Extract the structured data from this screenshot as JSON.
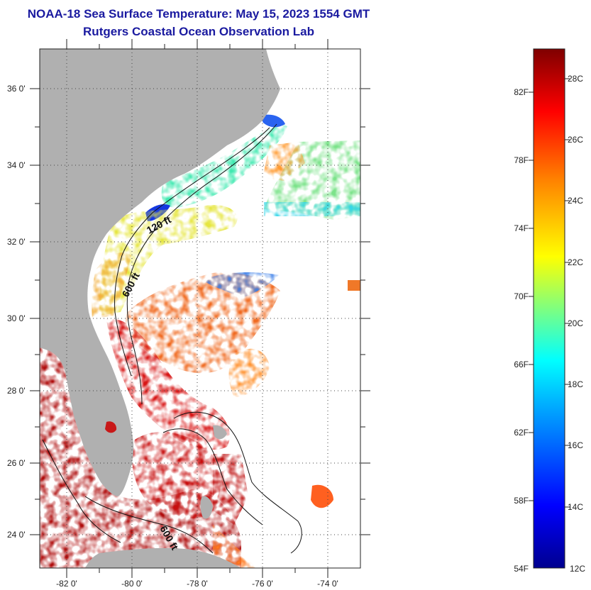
{
  "header": {
    "title": "NOAA-18 Sea Surface Temperature:  May 15, 2023 1554 GMT",
    "subtitle": "Rutgers Coastal Ocean Observation Lab"
  },
  "map": {
    "latitude_labels": [
      "36 0'",
      "34 0'",
      "32 0'",
      "30 0'",
      "28 0'",
      "26 0'",
      "24 0'"
    ],
    "longitude_labels": [
      "-82 0'",
      "-80 0'",
      "-78 0'",
      "-76 0'",
      "-74 0'"
    ],
    "contour_labels": [
      "120 ft",
      "600 ft",
      "600 ft"
    ],
    "land_color": "#b0b0b0",
    "gridlines": "dotted"
  },
  "colorbar": {
    "fahrenheit_labels": [
      "82F",
      "78F",
      "74F",
      "70F",
      "66F",
      "62F",
      "58F",
      "54F"
    ],
    "celsius_labels": [
      "28C",
      "26C",
      "24C",
      "22C",
      "20C",
      "18C",
      "16C",
      "14C",
      "12C"
    ],
    "range_celsius": [
      12,
      29
    ]
  }
}
